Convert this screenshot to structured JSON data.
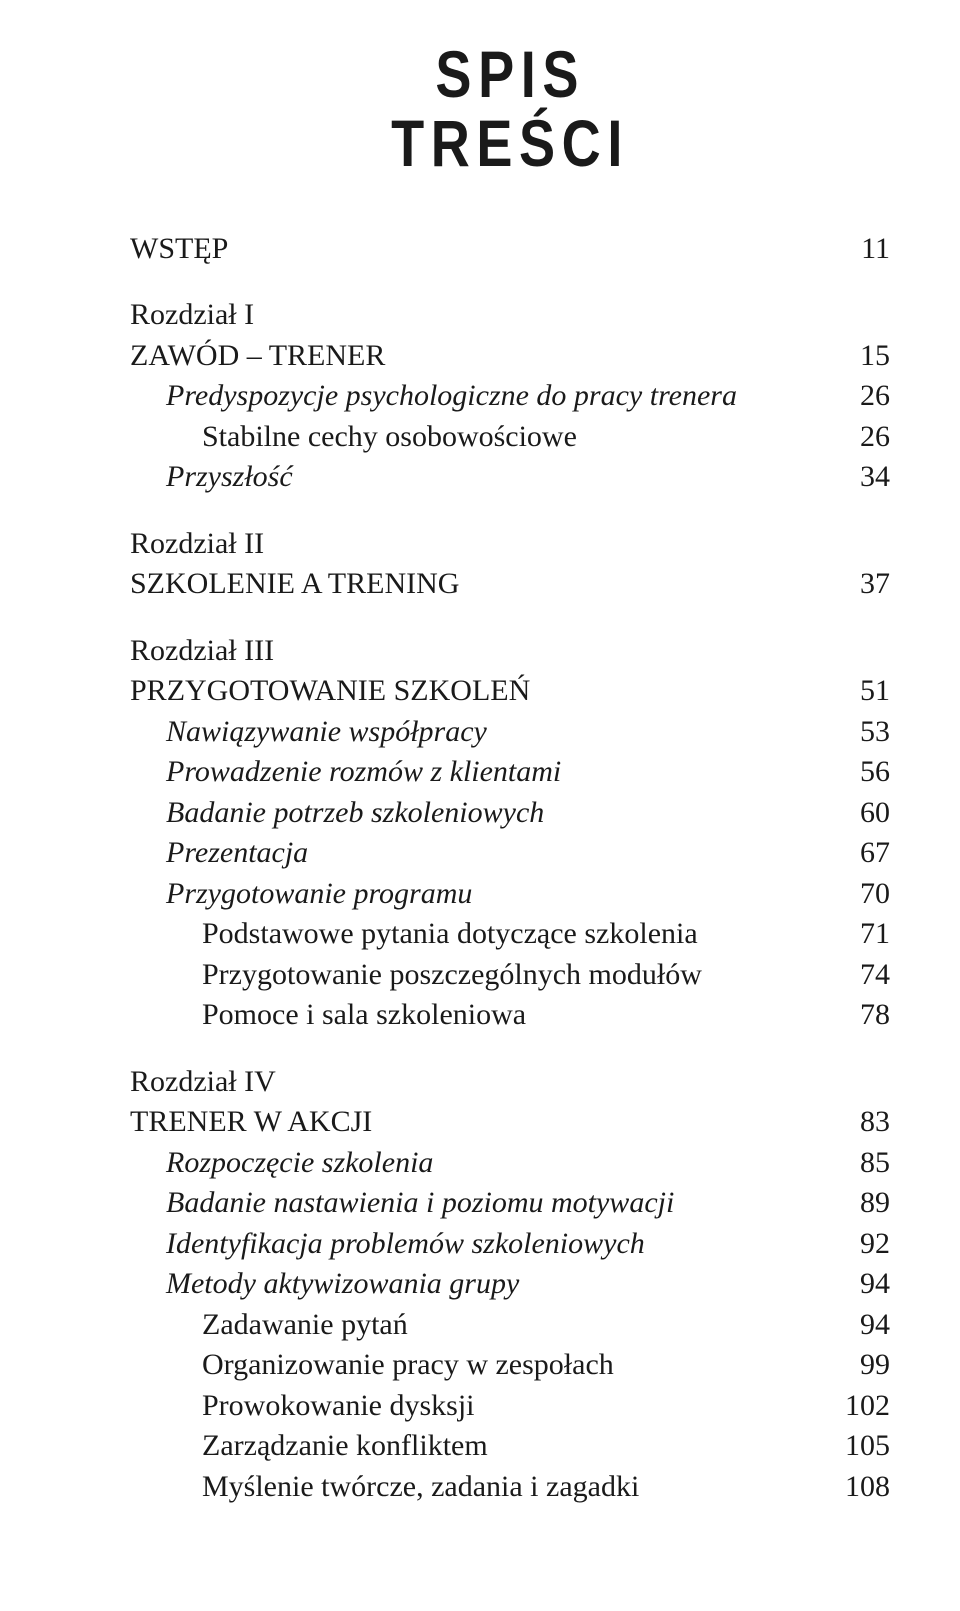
{
  "heading_line1": "SPIS",
  "heading_line2": "TREŚCI",
  "entries": [
    {
      "text": "WSTĘP",
      "page": "11",
      "italic": false,
      "indent": 0,
      "chapterLabel": false,
      "firstChapter": true,
      "lone": true
    },
    {
      "text": "Rozdział I",
      "page": "",
      "italic": false,
      "indent": 0,
      "chapterLabel": true
    },
    {
      "text": "ZAWÓD – TRENER",
      "page": "15",
      "italic": false,
      "indent": 0
    },
    {
      "text": "Predyspozycje psychologiczne do pracy trenera",
      "page": "26",
      "italic": true,
      "indent": 1
    },
    {
      "text": "Stabilne cechy osobowościowe",
      "page": "26",
      "italic": false,
      "indent": 2
    },
    {
      "text": "Przyszłość",
      "page": "34",
      "italic": true,
      "indent": 1
    },
    {
      "text": "Rozdział II",
      "page": "",
      "italic": false,
      "indent": 0,
      "chapterLabel": true
    },
    {
      "text": "SZKOLENIE A TRENING",
      "page": "37",
      "italic": false,
      "indent": 0
    },
    {
      "text": "Rozdział III",
      "page": "",
      "italic": false,
      "indent": 0,
      "chapterLabel": true
    },
    {
      "text": "PRZYGOTOWANIE SZKOLEŃ",
      "page": "51",
      "italic": false,
      "indent": 0
    },
    {
      "text": "Nawiązywanie współpracy",
      "page": "53",
      "italic": true,
      "indent": 1
    },
    {
      "text": "Prowadzenie rozmów z klientami",
      "page": "56",
      "italic": true,
      "indent": 1
    },
    {
      "text": "Badanie potrzeb szkoleniowych",
      "page": "60",
      "italic": true,
      "indent": 1
    },
    {
      "text": "Prezentacja",
      "page": "67",
      "italic": true,
      "indent": 1
    },
    {
      "text": "Przygotowanie programu",
      "page": "70",
      "italic": true,
      "indent": 1
    },
    {
      "text": "Podstawowe pytania dotyczące szkolenia",
      "page": "71",
      "italic": false,
      "indent": 2
    },
    {
      "text": "Przygotowanie poszczególnych modułów",
      "page": "74",
      "italic": false,
      "indent": 2
    },
    {
      "text": "Pomoce i sala szkoleniowa",
      "page": "78",
      "italic": false,
      "indent": 2
    },
    {
      "text": "Rozdział IV",
      "page": "",
      "italic": false,
      "indent": 0,
      "chapterLabel": true
    },
    {
      "text": "TRENER W AKCJI",
      "page": "83",
      "italic": false,
      "indent": 0
    },
    {
      "text": "Rozpoczęcie szkolenia",
      "page": "85",
      "italic": true,
      "indent": 1
    },
    {
      "text": "Badanie nastawienia i poziomu motywacji",
      "page": "89",
      "italic": true,
      "indent": 1
    },
    {
      "text": "Identyfikacja problemów szkoleniowych",
      "page": "92",
      "italic": true,
      "indent": 1
    },
    {
      "text": "Metody aktywizowania grupy",
      "page": "94",
      "italic": true,
      "indent": 1
    },
    {
      "text": "Zadawanie pytań",
      "page": "94",
      "italic": false,
      "indent": 2
    },
    {
      "text": "Organizowanie pracy w zespołach",
      "page": "99",
      "italic": false,
      "indent": 2
    },
    {
      "text": "Prowokowanie dysksji",
      "page": "102",
      "italic": false,
      "indent": 2
    },
    {
      "text": "Zarządzanie konfliktem",
      "page": "105",
      "italic": false,
      "indent": 2
    },
    {
      "text": "Myślenie twórcze, zadania i zagadki",
      "page": "108",
      "italic": false,
      "indent": 2
    }
  ]
}
